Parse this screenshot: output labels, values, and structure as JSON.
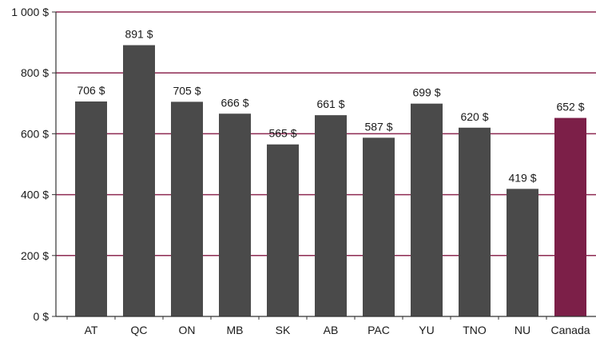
{
  "chart_data": {
    "type": "bar",
    "title": "",
    "xlabel": "",
    "ylabel": "",
    "categories": [
      "AT",
      "QC",
      "ON",
      "MB",
      "SK",
      "AB",
      "PAC",
      "YU",
      "TNO",
      "NU",
      "Canada"
    ],
    "values": [
      706,
      891,
      705,
      666,
      565,
      661,
      587,
      699,
      620,
      419,
      652
    ],
    "value_labels": [
      "706 $",
      "891 $",
      "705 $",
      "666 $",
      "565 $",
      "661 $",
      "587 $",
      "699 $",
      "620 $",
      "419 $",
      "652 $"
    ],
    "ylim": [
      0,
      1000
    ],
    "yticks": [
      0,
      200,
      400,
      600,
      800,
      1000
    ],
    "ytick_labels": [
      "0 $",
      "200 $",
      "400 $",
      "600 $",
      "800 $",
      "1 000 $"
    ],
    "grid": true,
    "colors": {
      "bar": "#4a4a4a",
      "highlight_bar": "#7c1f48",
      "grid": "#8e2a52",
      "axis": "#333333"
    },
    "highlight_category": "Canada"
  }
}
